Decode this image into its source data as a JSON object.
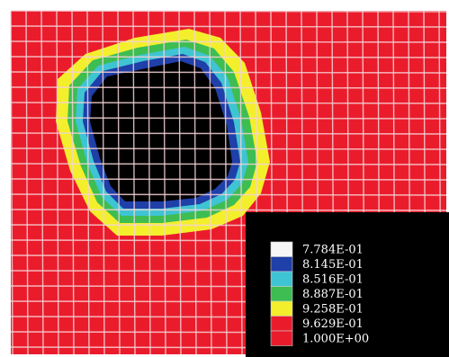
{
  "colors": {
    "field": "#ea1c2c",
    "mesh": "#f4d3d6",
    "core": "#000000",
    "panel": "#000000",
    "label_text": "#ffffff",
    "background": "#ffffff"
  },
  "legend": {
    "entries": [
      {
        "label": "7.784E-01",
        "color": "#f6f6f6"
      },
      {
        "label": "8.145E-01",
        "color": "#1f3fa9"
      },
      {
        "label": "8.516E-01",
        "color": "#3fc4d3"
      },
      {
        "label": "8.887E-01",
        "color": "#3dbd52"
      },
      {
        "label": "9.258E-01",
        "color": "#f3ef2c"
      },
      {
        "label": "9.629E-01",
        "color": "#ea1c2c"
      },
      {
        "label": "1.000E+00",
        "color": "#ea1c2c"
      }
    ]
  }
}
